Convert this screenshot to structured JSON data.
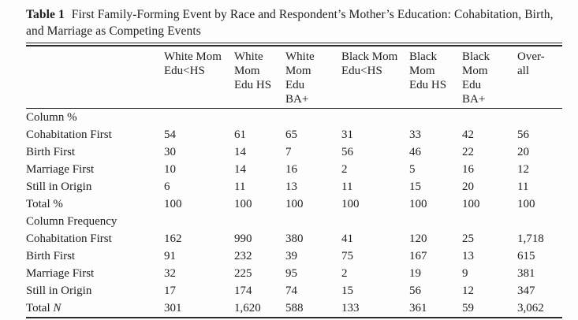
{
  "caption": {
    "label": "Table 1",
    "text": "First Family-Forming Event by Race and Respondent’s Mother’s Education: Cohabitation, Birth, and Marriage as Competing Events"
  },
  "table": {
    "columns": [
      "White Mom\nEdu<HS",
      "White\nMom\nEdu HS",
      "White\nMom\nEdu\nBA+",
      "Black Mom\nEdu<HS",
      "Black\nMom\nEdu HS",
      "Black\nMom\nEdu\nBA+",
      "Over-\nall"
    ],
    "sections": [
      {
        "header": "Column %",
        "rows": [
          {
            "label": "Cohabitation First",
            "values": [
              "54",
              "61",
              "65",
              "31",
              "33",
              "42",
              "56"
            ]
          },
          {
            "label": "Birth First",
            "values": [
              "30",
              "14",
              "7",
              "56",
              "46",
              "22",
              "20"
            ]
          },
          {
            "label": "Marriage First",
            "values": [
              "10",
              "14",
              "16",
              "2",
              "5",
              "16",
              "12"
            ]
          },
          {
            "label": "Still in Origin",
            "values": [
              "6",
              "11",
              "13",
              "11",
              "15",
              "20",
              "11"
            ]
          },
          {
            "label": "Total %",
            "values": [
              "100",
              "100",
              "100",
              "100",
              "100",
              "100",
              "100"
            ]
          }
        ]
      },
      {
        "header": "Column Frequency",
        "rows": [
          {
            "label": "Cohabitation First",
            "values": [
              "162",
              "990",
              "380",
              "41",
              "120",
              "25",
              "1,718"
            ]
          },
          {
            "label": "Birth First",
            "values": [
              "91",
              "232",
              "39",
              "75",
              "167",
              "13",
              "615"
            ]
          },
          {
            "label": "Marriage First",
            "values": [
              "32",
              "225",
              "95",
              "2",
              "19",
              "9",
              "381"
            ]
          },
          {
            "label": "Still in Origin",
            "values": [
              "17",
              "174",
              "74",
              "15",
              "56",
              "12",
              "347"
            ]
          },
          {
            "label": "Total ",
            "label_italic": "N",
            "values": [
              "301",
              "1,620",
              "588",
              "133",
              "361",
              "59",
              "3,062"
            ]
          }
        ]
      }
    ]
  }
}
